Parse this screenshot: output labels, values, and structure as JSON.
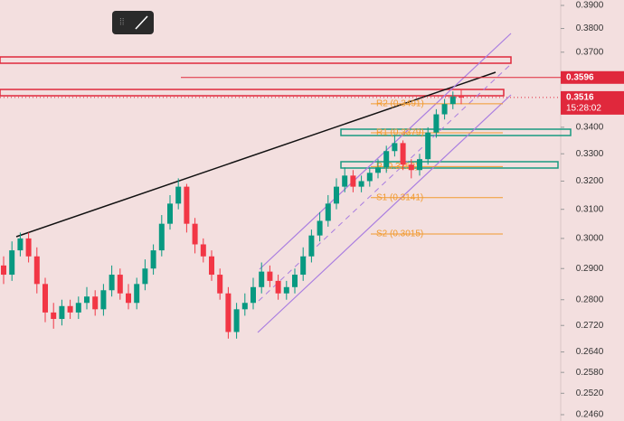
{
  "chart_data": {
    "type": "candlestick",
    "log": true,
    "ylim": [
      0.246,
      0.39
    ],
    "yticks": [
      {
        "value": 0.39,
        "label": "0.3900"
      },
      {
        "value": 0.38,
        "label": "0.3800"
      },
      {
        "value": 0.37,
        "label": "0.3700"
      },
      {
        "value": 0.34,
        "label": "0.3400"
      },
      {
        "value": 0.33,
        "label": "0.3300"
      },
      {
        "value": 0.32,
        "label": "0.3200"
      },
      {
        "value": 0.31,
        "label": "0.3100"
      },
      {
        "value": 0.3,
        "label": "0.3000"
      },
      {
        "value": 0.29,
        "label": "0.2900"
      },
      {
        "value": 0.28,
        "label": "0.2800"
      },
      {
        "value": 0.272,
        "label": "0.2720"
      },
      {
        "value": 0.264,
        "label": "0.2640"
      },
      {
        "value": 0.258,
        "label": "0.2580"
      },
      {
        "value": 0.252,
        "label": "0.2520"
      },
      {
        "value": 0.246,
        "label": "0.2460"
      }
    ],
    "up_color": "#089981",
    "down_color": "#f23645",
    "open": [
      0.291,
      0.288,
      0.296,
      0.3,
      0.294,
      0.285,
      0.276,
      0.274,
      0.278,
      0.276,
      0.279,
      0.281,
      0.277,
      0.283,
      0.288,
      0.282,
      0.279,
      0.285,
      0.29,
      0.296,
      0.305,
      0.312,
      0.318,
      0.305,
      0.298,
      0.294,
      0.288,
      0.282,
      0.27,
      0.277,
      0.279,
      0.284,
      0.289,
      0.286,
      0.282,
      0.284,
      0.288,
      0.294,
      0.301,
      0.306,
      0.312,
      0.318,
      0.322,
      0.318,
      0.32,
      0.323,
      0.325,
      0.331,
      0.334,
      0.326,
      0.324,
      0.328,
      0.338,
      0.345,
      0.349,
      0.352
    ],
    "high": [
      0.294,
      0.299,
      0.302,
      0.302,
      0.297,
      0.287,
      0.279,
      0.28,
      0.28,
      0.281,
      0.284,
      0.283,
      0.285,
      0.291,
      0.29,
      0.285,
      0.287,
      0.293,
      0.298,
      0.308,
      0.315,
      0.321,
      0.319,
      0.307,
      0.3,
      0.296,
      0.29,
      0.284,
      0.279,
      0.282,
      0.287,
      0.292,
      0.291,
      0.288,
      0.286,
      0.29,
      0.297,
      0.303,
      0.309,
      0.315,
      0.321,
      0.325,
      0.324,
      0.322,
      0.325,
      0.328,
      0.333,
      0.337,
      0.335,
      0.328,
      0.33,
      0.34,
      0.347,
      0.351,
      0.354,
      0.355
    ],
    "low": [
      0.285,
      0.286,
      0.294,
      0.292,
      0.282,
      0.273,
      0.271,
      0.272,
      0.274,
      0.274,
      0.277,
      0.275,
      0.275,
      0.281,
      0.28,
      0.277,
      0.277,
      0.283,
      0.288,
      0.294,
      0.303,
      0.31,
      0.302,
      0.295,
      0.292,
      0.286,
      0.28,
      0.268,
      0.268,
      0.275,
      0.277,
      0.282,
      0.284,
      0.28,
      0.28,
      0.282,
      0.286,
      0.292,
      0.299,
      0.304,
      0.31,
      0.316,
      0.316,
      0.316,
      0.318,
      0.321,
      0.323,
      0.329,
      0.324,
      0.321,
      0.322,
      0.326,
      0.336,
      0.343,
      0.347,
      0.349
    ],
    "close": [
      0.288,
      0.296,
      0.3,
      0.294,
      0.285,
      0.276,
      0.274,
      0.278,
      0.276,
      0.279,
      0.281,
      0.277,
      0.283,
      0.288,
      0.282,
      0.279,
      0.285,
      0.29,
      0.296,
      0.305,
      0.312,
      0.318,
      0.305,
      0.298,
      0.294,
      0.288,
      0.282,
      0.27,
      0.277,
      0.279,
      0.284,
      0.289,
      0.286,
      0.282,
      0.284,
      0.288,
      0.294,
      0.301,
      0.306,
      0.312,
      0.318,
      0.322,
      0.318,
      0.32,
      0.323,
      0.325,
      0.331,
      0.334,
      0.326,
      0.324,
      0.328,
      0.338,
      0.345,
      0.349,
      0.352,
      0.3516
    ],
    "pivots": [
      {
        "label": "R2 (0.3491)",
        "value": 0.3491
      },
      {
        "label": "R1 (0.3379)",
        "value": 0.3379
      },
      {
        "label": "P (0.3253)",
        "value": 0.3253
      },
      {
        "label": "S1 (0.3141)",
        "value": 0.3141
      },
      {
        "label": "S2 (0.3015)",
        "value": 0.3015
      }
    ],
    "price_lines": [
      {
        "value": 0.3596,
        "label": "0.3596"
      },
      {
        "value": 0.3516,
        "label": "0.3516",
        "countdown": "15:28:02"
      }
    ]
  }
}
